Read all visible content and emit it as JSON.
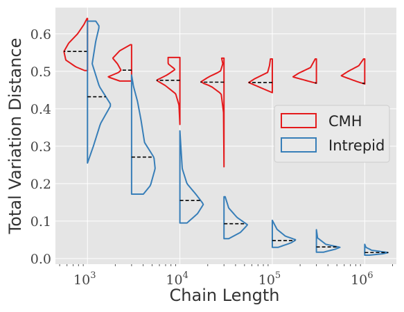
{
  "chart_data": {
    "type": "violin",
    "xlabel": "Chain Length",
    "ylabel": "Total Variation Distance",
    "xscale": "log",
    "xlim": [
      450,
      2200000
    ],
    "ylim": [
      -0.015,
      0.67
    ],
    "yticks": [
      0.0,
      0.1,
      0.2,
      0.3,
      0.4,
      0.5,
      0.6
    ],
    "ytick_labels": [
      "0.0",
      "0.1",
      "0.2",
      "0.3",
      "0.4",
      "0.5",
      "0.6"
    ],
    "xticks_major": [
      1000,
      10000,
      100000,
      1000000
    ],
    "xtick_labels": [
      {
        "base": "10",
        "exp": "3"
      },
      {
        "base": "10",
        "exp": "4"
      },
      {
        "base": "10",
        "exp": "5"
      },
      {
        "base": "10",
        "exp": "6"
      }
    ],
    "grid": true,
    "legend": {
      "placement": "center-right"
    },
    "colors": {
      "CMH": "#e41a1c",
      "Intrepid": "#377eb8",
      "background": "#e5e5e5"
    },
    "series": [
      {
        "name": "CMH",
        "side": "left",
        "violins": [
          {
            "x": 1000,
            "min": 0.502,
            "max": 0.641,
            "median": 0.553,
            "profile": [
              [
                0.502,
                0.12
              ],
              [
                0.512,
                0.5
              ],
              [
                0.53,
                0.92
              ],
              [
                0.553,
                1.0
              ],
              [
                0.575,
                0.8
              ],
              [
                0.6,
                0.42
              ],
              [
                0.625,
                0.15
              ],
              [
                0.641,
                0.02
              ]
            ]
          },
          {
            "x": 3000,
            "min": 0.474,
            "max": 0.571,
            "median": 0.503,
            "profile": [
              [
                0.474,
                0.5
              ],
              [
                0.485,
                1.0
              ],
              [
                0.497,
                0.55
              ],
              [
                0.503,
                0.45
              ],
              [
                0.52,
                0.6
              ],
              [
                0.535,
                0.8
              ],
              [
                0.555,
                0.5
              ],
              [
                0.571,
                0.05
              ]
            ]
          },
          {
            "x": 10000,
            "min": 0.358,
            "max": 0.537,
            "median": 0.476,
            "profile": [
              [
                0.358,
                0.0
              ],
              [
                0.41,
                0.04
              ],
              [
                0.44,
                0.18
              ],
              [
                0.462,
                0.62
              ],
              [
                0.476,
                1.0
              ],
              [
                0.49,
                0.55
              ],
              [
                0.505,
                0.2
              ],
              [
                0.52,
                0.5
              ],
              [
                0.537,
                0.5
              ]
            ]
          },
          {
            "x": 30000,
            "min": 0.245,
            "max": 0.535,
            "median": 0.471,
            "profile": [
              [
                0.245,
                0.0
              ],
              [
                0.39,
                0.02
              ],
              [
                0.44,
                0.12
              ],
              [
                0.46,
                0.55
              ],
              [
                0.471,
                1.0
              ],
              [
                0.485,
                0.65
              ],
              [
                0.5,
                0.15
              ],
              [
                0.52,
                0.05
              ],
              [
                0.535,
                0.1
              ]
            ]
          },
          {
            "x": 100000,
            "min": 0.443,
            "max": 0.533,
            "median": 0.47,
            "profile": [
              [
                0.443,
                0.0
              ],
              [
                0.455,
                0.45
              ],
              [
                0.47,
                1.0
              ],
              [
                0.48,
                0.75
              ],
              [
                0.497,
                0.2
              ],
              [
                0.515,
                0.12
              ],
              [
                0.533,
                0.08
              ]
            ]
          },
          {
            "x": 300000,
            "min": 0.468,
            "max": 0.533,
            "median": 0.469,
            "profile": [
              [
                0.468,
                0.0
              ],
              [
                0.473,
                0.3
              ],
              [
                0.485,
                1.0
              ],
              [
                0.495,
                0.75
              ],
              [
                0.51,
                0.25
              ],
              [
                0.533,
                0.05
              ]
            ]
          },
          {
            "x": 1000000,
            "min": 0.466,
            "max": 0.533,
            "median": 0.468,
            "profile": [
              [
                0.466,
                0.0
              ],
              [
                0.473,
                0.35
              ],
              [
                0.488,
                1.0
              ],
              [
                0.5,
                0.7
              ],
              [
                0.515,
                0.25
              ],
              [
                0.533,
                0.05
              ]
            ]
          }
        ]
      },
      {
        "name": "Intrepid",
        "side": "right",
        "violins": [
          {
            "x": 1000,
            "min": 0.255,
            "max": 0.634,
            "median": 0.432,
            "profile": [
              [
                0.255,
                0.0
              ],
              [
                0.3,
                0.25
              ],
              [
                0.36,
                0.55
              ],
              [
                0.41,
                1.0
              ],
              [
                0.46,
                0.5
              ],
              [
                0.52,
                0.2
              ],
              [
                0.58,
                0.35
              ],
              [
                0.62,
                0.5
              ],
              [
                0.634,
                0.35
              ]
            ]
          },
          {
            "x": 3000,
            "min": 0.172,
            "max": 0.49,
            "median": 0.271,
            "profile": [
              [
                0.172,
                0.5
              ],
              [
                0.195,
                0.8
              ],
              [
                0.24,
                1.0
              ],
              [
                0.27,
                0.95
              ],
              [
                0.31,
                0.55
              ],
              [
                0.37,
                0.4
              ],
              [
                0.42,
                0.25
              ],
              [
                0.46,
                0.08
              ],
              [
                0.49,
                0.0
              ]
            ]
          },
          {
            "x": 10000,
            "min": 0.095,
            "max": 0.341,
            "median": 0.155,
            "profile": [
              [
                0.095,
                0.3
              ],
              [
                0.12,
                0.75
              ],
              [
                0.145,
                1.0
              ],
              [
                0.17,
                0.7
              ],
              [
                0.2,
                0.3
              ],
              [
                0.24,
                0.1
              ],
              [
                0.29,
                0.05
              ],
              [
                0.341,
                0.0
              ]
            ]
          },
          {
            "x": 30000,
            "min": 0.053,
            "max": 0.165,
            "median": 0.093,
            "profile": [
              [
                0.053,
                0.2
              ],
              [
                0.07,
                0.7
              ],
              [
                0.09,
                1.0
              ],
              [
                0.11,
                0.55
              ],
              [
                0.135,
                0.2
              ],
              [
                0.165,
                0.05
              ]
            ]
          },
          {
            "x": 100000,
            "min": 0.03,
            "max": 0.102,
            "median": 0.048,
            "profile": [
              [
                0.03,
                0.25
              ],
              [
                0.042,
                0.8
              ],
              [
                0.05,
                1.0
              ],
              [
                0.06,
                0.55
              ],
              [
                0.078,
                0.2
              ],
              [
                0.102,
                0.0
              ]
            ]
          },
          {
            "x": 300000,
            "min": 0.017,
            "max": 0.077,
            "median": 0.031,
            "profile": [
              [
                0.017,
                0.3
              ],
              [
                0.025,
                0.8
              ],
              [
                0.03,
                1.0
              ],
              [
                0.038,
                0.4
              ],
              [
                0.055,
                0.05
              ],
              [
                0.077,
                0.0
              ]
            ]
          },
          {
            "x": 1000000,
            "min": 0.009,
            "max": 0.038,
            "median": 0.016,
            "profile": [
              [
                0.009,
                0.2
              ],
              [
                0.013,
                0.8
              ],
              [
                0.016,
                1.0
              ],
              [
                0.022,
                0.3
              ],
              [
                0.03,
                0.05
              ],
              [
                0.038,
                0.0
              ]
            ]
          }
        ]
      }
    ]
  }
}
